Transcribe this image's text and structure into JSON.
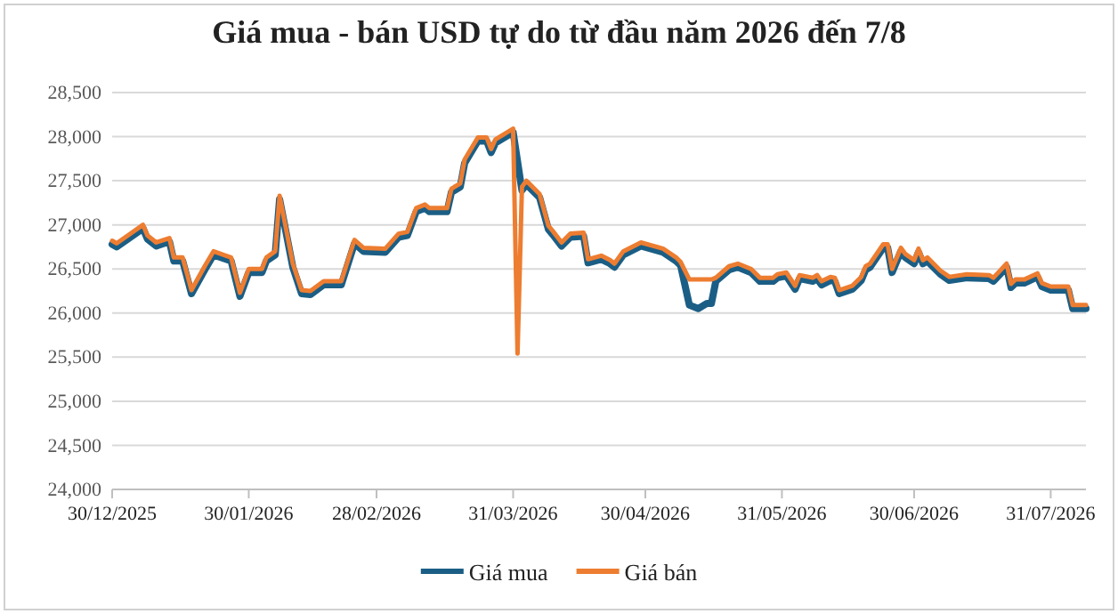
{
  "chart_data": {
    "type": "line",
    "title": "Giá mua - bán USD tự do từ đầu năm 2026 đến 7/8",
    "x": [
      "2025-12-30",
      "2025-12-31",
      "2026-01-06",
      "2026-01-07",
      "2026-01-09",
      "2026-01-12",
      "2026-01-13",
      "2026-01-15",
      "2026-01-17",
      "2026-01-20",
      "2026-01-22",
      "2026-01-26",
      "2026-01-28",
      "2026-01-30",
      "2026-02-02",
      "2026-02-03",
      "2026-02-05",
      "2026-02-06",
      "2026-02-09",
      "2026-02-11",
      "2026-02-13",
      "2026-02-16",
      "2026-02-20",
      "2026-02-23",
      "2026-02-25",
      "2026-03-02",
      "2026-03-05",
      "2026-03-07",
      "2026-03-09",
      "2026-03-11",
      "2026-03-12",
      "2026-03-16",
      "2026-03-17",
      "2026-03-19",
      "2026-03-20",
      "2026-03-23",
      "2026-03-25",
      "2026-03-26",
      "2026-03-27",
      "2026-03-31",
      "2026-04-01",
      "2026-04-02",
      "2026-04-03",
      "2026-04-06",
      "2026-04-08",
      "2026-04-09",
      "2026-04-11",
      "2026-04-13",
      "2026-04-16",
      "2026-04-17",
      "2026-04-20",
      "2026-04-22",
      "2026-04-23",
      "2026-04-25",
      "2026-04-29",
      "2026-05-04",
      "2026-05-07",
      "2026-05-08",
      "2026-05-10",
      "2026-05-12",
      "2026-05-14",
      "2026-05-15",
      "2026-05-16",
      "2026-05-19",
      "2026-05-21",
      "2026-05-24",
      "2026-05-26",
      "2026-05-29",
      "2026-05-30",
      "2026-06-01",
      "2026-06-03",
      "2026-06-04",
      "2026-06-07",
      "2026-06-08",
      "2026-06-09",
      "2026-06-11",
      "2026-06-12",
      "2026-06-13",
      "2026-06-16",
      "2026-06-18",
      "2026-06-19",
      "2026-06-20",
      "2026-06-23",
      "2026-06-24",
      "2026-06-25",
      "2026-06-27",
      "2026-06-28",
      "2026-06-30",
      "2026-07-01",
      "2026-07-02",
      "2026-07-03",
      "2026-07-06",
      "2026-07-08",
      "2026-07-12",
      "2026-07-17",
      "2026-07-18",
      "2026-07-21",
      "2026-07-22",
      "2026-07-23",
      "2026-07-25",
      "2026-07-28",
      "2026-07-29",
      "2026-07-31",
      "2026-08-04",
      "2026-08-05",
      "2026-08-08"
    ],
    "series": [
      {
        "name": "Giá mua",
        "color": "#1b5e85",
        "x": [
          "2025-12-30",
          "2025-12-31",
          "2026-01-06",
          "2026-01-07",
          "2026-01-09",
          "2026-01-12",
          "2026-01-13",
          "2026-01-15",
          "2026-01-17",
          "2026-01-20",
          "2026-01-22",
          "2026-01-26",
          "2026-01-28",
          "2026-01-30",
          "2026-02-02",
          "2026-02-03",
          "2026-02-05",
          "2026-02-06",
          "2026-02-09",
          "2026-02-11",
          "2026-02-13",
          "2026-02-16",
          "2026-02-20",
          "2026-02-23",
          "2026-02-25",
          "2026-03-02",
          "2026-03-05",
          "2026-03-07",
          "2026-03-09",
          "2026-03-11",
          "2026-03-12",
          "2026-03-16",
          "2026-03-17",
          "2026-03-19",
          "2026-03-20",
          "2026-03-23",
          "2026-03-25",
          "2026-03-26",
          "2026-03-27",
          "2026-03-31",
          "2026-04-02",
          "2026-04-03",
          "2026-04-06",
          "2026-04-08",
          "2026-04-09",
          "2026-04-11",
          "2026-04-13",
          "2026-04-16",
          "2026-04-17",
          "2026-04-20",
          "2026-04-22",
          "2026-04-23",
          "2026-04-25",
          "2026-04-29",
          "2026-05-04",
          "2026-05-07",
          "2026-05-08",
          "2026-05-10",
          "2026-05-12",
          "2026-05-14",
          "2026-05-15",
          "2026-05-16",
          "2026-05-19",
          "2026-05-21",
          "2026-05-24",
          "2026-05-26",
          "2026-05-29",
          "2026-05-30",
          "2026-06-01",
          "2026-06-03",
          "2026-06-04",
          "2026-06-07",
          "2026-06-08",
          "2026-06-09",
          "2026-06-11",
          "2026-06-12",
          "2026-06-13",
          "2026-06-16",
          "2026-06-18",
          "2026-06-19",
          "2026-06-20",
          "2026-06-23",
          "2026-06-24",
          "2026-06-25",
          "2026-06-27",
          "2026-06-28",
          "2026-06-30",
          "2026-07-01",
          "2026-07-02",
          "2026-07-03",
          "2026-07-06",
          "2026-07-08",
          "2026-07-12",
          "2026-07-17",
          "2026-07-18",
          "2026-07-21",
          "2026-07-22",
          "2026-07-23",
          "2026-07-25",
          "2026-07-28",
          "2026-07-29",
          "2026-07-31",
          "2026-08-04",
          "2026-08-05",
          "2026-08-08"
        ],
        "values": [
          26780,
          26750,
          26960,
          26840,
          26760,
          26810,
          26590,
          26590,
          26220,
          26490,
          26660,
          26590,
          26190,
          26460,
          26460,
          26590,
          26660,
          27290,
          26520,
          26220,
          26210,
          26320,
          26320,
          26790,
          26700,
          26690,
          26860,
          26880,
          27150,
          27190,
          27150,
          27150,
          27370,
          27430,
          27700,
          27950,
          27950,
          27820,
          27930,
          28050,
          27390,
          27460,
          27310,
          26950,
          26890,
          26760,
          26860,
          26870,
          26570,
          26610,
          26560,
          26520,
          26660,
          26760,
          26690,
          26590,
          26540,
          26090,
          26050,
          26110,
          26110,
          26360,
          26490,
          26520,
          26460,
          26360,
          26360,
          26400,
          26420,
          26270,
          26390,
          26360,
          26390,
          26320,
          26370,
          26360,
          26220,
          26270,
          26370,
          26490,
          26520,
          26740,
          26740,
          26460,
          26700,
          26630,
          26560,
          26690,
          26560,
          26590,
          26440,
          26370,
          26400,
          26390,
          26360,
          26520,
          26290,
          26340,
          26340,
          26410,
          26300,
          26260,
          26260,
          26050,
          26050
        ]
      },
      {
        "name": "Giá bán",
        "color": "#ed7d31",
        "values": [
          26820,
          26790,
          27000,
          26880,
          26800,
          26850,
          26630,
          26630,
          26260,
          26530,
          26700,
          26630,
          26230,
          26500,
          26500,
          26630,
          26700,
          27330,
          26560,
          26260,
          26250,
          26360,
          26360,
          26830,
          26740,
          26730,
          26900,
          26920,
          27190,
          27230,
          27190,
          27190,
          27410,
          27470,
          27740,
          27990,
          27990,
          27860,
          27970,
          28090,
          25540,
          27430,
          27500,
          27350,
          26990,
          26930,
          26800,
          26900,
          26910,
          26610,
          26650,
          26600,
          26560,
          26700,
          26800,
          26730,
          26630,
          26580,
          26380,
          26380,
          26380,
          26380,
          26400,
          26530,
          26560,
          26500,
          26400,
          26400,
          26440,
          26460,
          26310,
          26430,
          26400,
          26430,
          26360,
          26410,
          26400,
          26260,
          26310,
          26410,
          26530,
          26560,
          26780,
          26780,
          26500,
          26740,
          26670,
          26600,
          26730,
          26600,
          26630,
          26480,
          26410,
          26440,
          26430,
          26400,
          26560,
          26330,
          26380,
          26380,
          26450,
          26340,
          26300,
          26300,
          26090,
          26090
        ]
      }
    ],
    "xlim": [
      "2025-12-30",
      "2026-08-08"
    ],
    "xticks": [
      {
        "value": "2025-12-30",
        "label": "30/12/2025"
      },
      {
        "value": "2026-01-30",
        "label": "30/01/2026"
      },
      {
        "value": "2026-02-28",
        "label": "28/02/2026"
      },
      {
        "value": "2026-03-31",
        "label": "31/03/2026"
      },
      {
        "value": "2026-04-30",
        "label": "30/04/2026"
      },
      {
        "value": "2026-05-31",
        "label": "31/05/2026"
      },
      {
        "value": "2026-06-30",
        "label": "30/06/2026"
      },
      {
        "value": "2026-07-31",
        "label": "31/07/2026"
      }
    ],
    "ylim": [
      24000,
      28500
    ],
    "yticks": [
      {
        "value": 24000,
        "label": "24,000"
      },
      {
        "value": 24500,
        "label": "24,500"
      },
      {
        "value": 25000,
        "label": "25,000"
      },
      {
        "value": 25500,
        "label": "25,500"
      },
      {
        "value": 26000,
        "label": "26,000"
      },
      {
        "value": 26500,
        "label": "26,500"
      },
      {
        "value": 27000,
        "label": "27,000"
      },
      {
        "value": 27500,
        "label": "27,500"
      },
      {
        "value": 28000,
        "label": "28,000"
      },
      {
        "value": 28500,
        "label": "28,500"
      }
    ],
    "grid": "y",
    "legend": "bottom",
    "line_style": "solid"
  }
}
